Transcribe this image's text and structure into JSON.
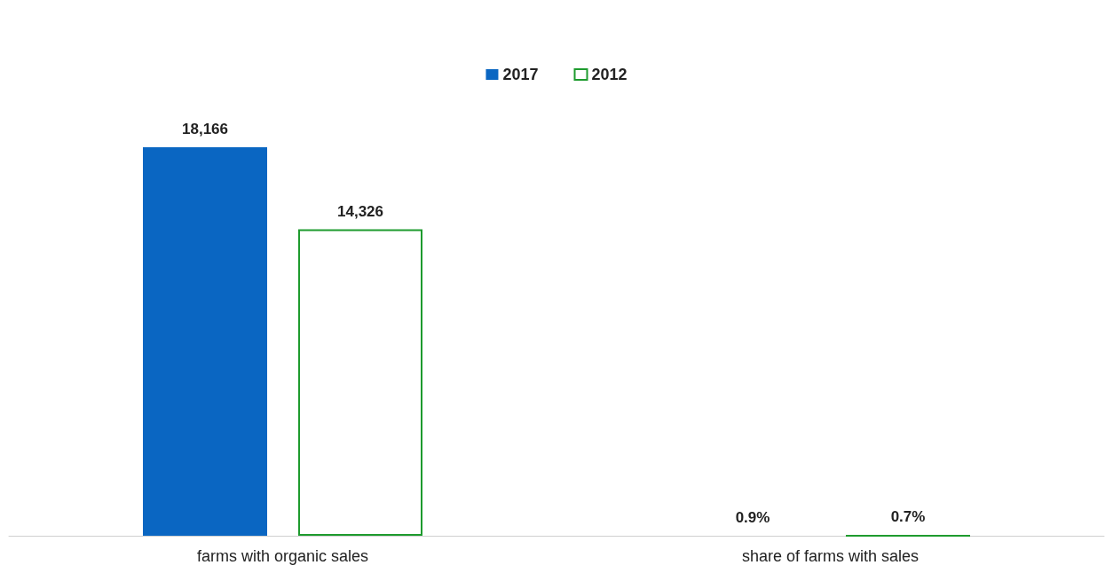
{
  "chart_data": {
    "type": "bar",
    "categories": [
      "farms with organic sales",
      "share of farms with sales"
    ],
    "series": [
      {
        "name": "2017",
        "color": "#0a66c2",
        "values": [
          18166,
          0.9
        ],
        "value_labels": [
          "18,166",
          "0.9%"
        ]
      },
      {
        "name": "2012",
        "color": "#1e9b2e",
        "values": [
          14326,
          0.7
        ],
        "value_labels": [
          "14,326",
          "0.7%"
        ]
      }
    ],
    "legend": "top"
  }
}
